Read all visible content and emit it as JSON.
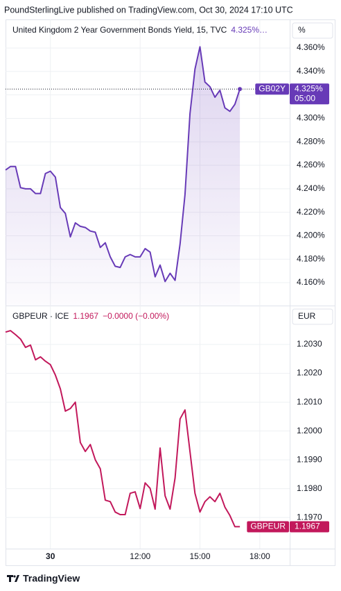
{
  "header": {
    "title": "PoundSterlingLive published on TradingView.com, Oct 30, 2024 17:10 UTC"
  },
  "footer": {
    "brand": "TradingView"
  },
  "chart_data": [
    {
      "type": "line",
      "title": "United Kingdom 2 Year Government Bonds Yield, 15, TVC",
      "legend_value": "4.325%…",
      "unit": "%",
      "badge": "GB02Y",
      "countdown": "05:00",
      "color": "#673ab7",
      "area": true,
      "categories": [
        null,
        null,
        null,
        null,
        null,
        null,
        null,
        null,
        null,
        "30",
        null,
        null,
        null,
        null,
        null,
        null,
        null,
        null,
        null,
        null,
        null,
        null,
        null,
        null,
        null,
        null,
        null,
        "12:00",
        null,
        null,
        null,
        null,
        null,
        null,
        null,
        null,
        null,
        null,
        null,
        "15:00",
        null,
        null,
        null,
        null,
        null,
        null,
        null,
        null,
        null,
        null,
        null,
        "18:00",
        null,
        null,
        null,
        null,
        null,
        null
      ],
      "values": [
        4.256,
        4.259,
        4.259,
        4.241,
        4.24,
        4.24,
        4.236,
        4.236,
        4.253,
        4.255,
        4.25,
        4.224,
        4.219,
        4.199,
        4.211,
        4.208,
        4.207,
        4.204,
        4.203,
        4.19,
        4.194,
        4.182,
        4.174,
        4.173,
        4.182,
        4.184,
        4.182,
        4.182,
        4.189,
        4.186,
        4.165,
        4.175,
        4.161,
        4.168,
        4.162,
        4.193,
        4.235,
        4.304,
        4.342,
        4.361,
        4.331,
        4.327,
        4.318,
        4.324,
        4.309,
        4.306,
        4.312,
        4.325,
        null,
        null,
        null,
        null,
        null,
        null,
        null,
        null,
        null,
        null
      ],
      "value_labels": [
        null,
        null,
        null,
        null,
        null,
        null,
        null,
        null,
        null,
        null,
        null,
        null,
        null,
        null,
        null,
        null,
        null,
        null,
        null,
        null,
        null,
        null,
        null,
        null,
        null,
        null,
        null,
        null,
        null,
        null,
        null,
        null,
        null,
        null,
        null,
        null,
        null,
        null,
        null,
        null,
        null,
        null,
        null,
        null,
        null,
        null,
        null,
        "4.325%",
        null,
        null,
        null,
        null,
        null,
        null,
        null,
        null,
        null,
        null
      ],
      "ylim": [
        4.1405,
        4.3843
      ],
      "yticks": [
        {
          "value": 4.16,
          "label": "4.160%"
        },
        {
          "value": 4.18,
          "label": "4.180%"
        },
        {
          "value": 4.2,
          "label": "4.200%"
        },
        {
          "value": 4.22,
          "label": "4.220%"
        },
        {
          "value": 4.24,
          "label": "4.240%"
        },
        {
          "value": 4.26,
          "label": "4.260%"
        },
        {
          "value": 4.28,
          "label": "4.280%"
        },
        {
          "value": 4.3,
          "label": "4.300%"
        },
        {
          "value": 4.32,
          "label": "4.320%"
        },
        {
          "value": 4.34,
          "label": "4.340%"
        },
        {
          "value": 4.36,
          "label": "4.360%"
        }
      ],
      "grid": true
    },
    {
      "type": "line",
      "title": "GBPEUR · ICE",
      "legend_value": "1.1967",
      "change": "−0.0000 (−0.00%)",
      "unit": "EUR",
      "badge": "GBPEUR",
      "color": "#c2185b",
      "area": false,
      "categories": [
        null,
        null,
        null,
        null,
        null,
        null,
        null,
        null,
        null,
        "30",
        null,
        null,
        null,
        null,
        null,
        null,
        null,
        null,
        null,
        null,
        null,
        null,
        null,
        null,
        null,
        null,
        null,
        "12:00",
        null,
        null,
        null,
        null,
        null,
        null,
        null,
        null,
        null,
        null,
        null,
        "15:00",
        null,
        null,
        null,
        null,
        null,
        null,
        null,
        null,
        null,
        null,
        null,
        "18:00",
        null,
        null,
        null,
        null,
        null,
        null
      ],
      "values": [
        1.20343,
        1.20348,
        1.20334,
        1.20319,
        1.2029,
        1.20298,
        1.20247,
        1.20257,
        1.20242,
        1.2023,
        1.20194,
        1.20146,
        1.20069,
        1.20078,
        1.201,
        1.1996,
        1.19929,
        1.19953,
        1.199,
        1.19869,
        1.1976,
        1.19755,
        1.19719,
        1.1971,
        1.1971,
        1.19784,
        1.19789,
        1.19731,
        1.1982,
        1.19801,
        1.19729,
        1.19941,
        1.19775,
        1.19729,
        1.19837,
        1.20042,
        1.20073,
        1.19929,
        1.19784,
        1.19719,
        1.19755,
        1.19772,
        1.19755,
        1.19784,
        1.19736,
        1.19707,
        1.19668,
        1.19668,
        null,
        null,
        null,
        null,
        null,
        null,
        null,
        null,
        null,
        null
      ],
      "value_labels": [
        null,
        null,
        null,
        null,
        null,
        null,
        null,
        null,
        null,
        null,
        null,
        null,
        null,
        null,
        null,
        null,
        null,
        null,
        null,
        null,
        null,
        null,
        null,
        null,
        null,
        null,
        null,
        null,
        null,
        null,
        null,
        null,
        null,
        null,
        null,
        null,
        null,
        null,
        null,
        null,
        null,
        null,
        null,
        null,
        null,
        null,
        null,
        "1.1967",
        null,
        null,
        null,
        null,
        null,
        null,
        null,
        null,
        null,
        null
      ],
      "ylim": [
        1.19592,
        1.20435
      ],
      "yticks": [
        {
          "value": 1.197,
          "label": "1.1970"
        },
        {
          "value": 1.198,
          "label": "1.1980"
        },
        {
          "value": 1.199,
          "label": "1.1990"
        },
        {
          "value": 1.2,
          "label": "1.2000"
        },
        {
          "value": 1.201,
          "label": "1.2010"
        },
        {
          "value": 1.202,
          "label": "1.2020"
        },
        {
          "value": 1.203,
          "label": "1.2030"
        }
      ],
      "grid": true
    }
  ]
}
